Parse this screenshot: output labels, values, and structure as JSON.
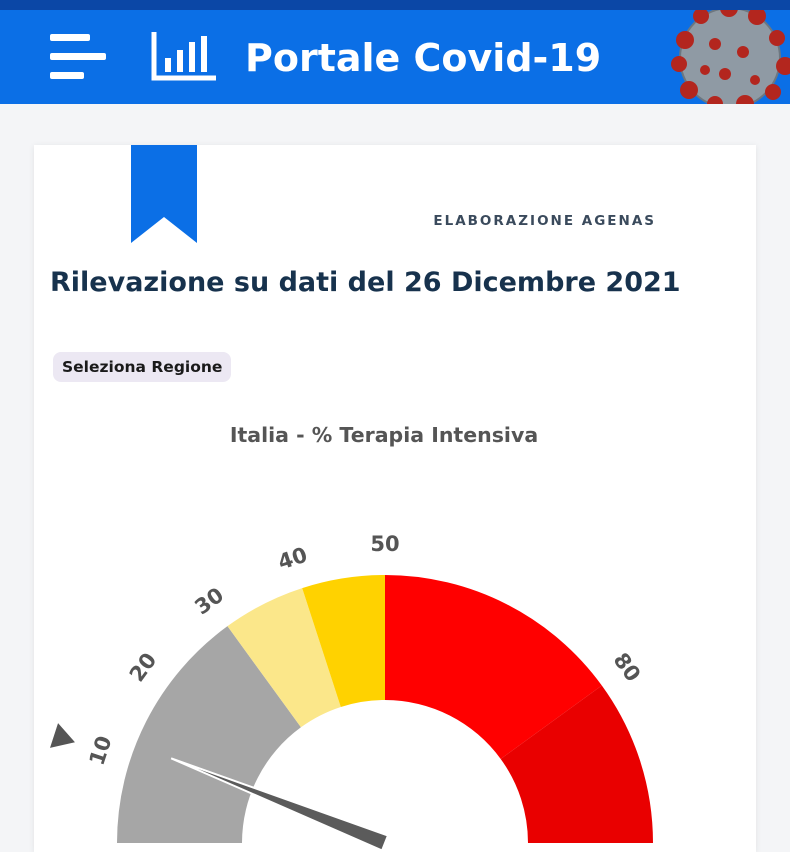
{
  "header": {
    "title": "Portale Covid-19",
    "menu_icon": "hamburger-menu-icon",
    "logo_icon": "bar-chart-icon",
    "virus_image": "coronavirus-image",
    "colors": {
      "header_bg": "#0b6fe6",
      "top_strip": "#0b47a6"
    }
  },
  "card": {
    "source_label": "ELABORAZIONE AGENAS",
    "heading": "Rilevazione su dati del 26 Dicembre 2021",
    "select_region_label": "Seleziona Regione",
    "bookmark_color": "#0b6fe6"
  },
  "chart_data": {
    "type": "gauge",
    "title": "Italia - % Terapia Intensiva",
    "tick_labels": [
      "10",
      "20",
      "30",
      "40",
      "50",
      "80"
    ],
    "bands": [
      {
        "from": 0,
        "to": 30,
        "color": "#a6a6a6"
      },
      {
        "from": 30,
        "to": 40,
        "color": "#fbe78a"
      },
      {
        "from": 40,
        "to": 50,
        "color": "#ffd200"
      },
      {
        "from": 50,
        "to": 80,
        "color": "#ff0000"
      },
      {
        "from": 80,
        "to": 100,
        "color": "#e90000"
      }
    ],
    "needle_value": 12,
    "threshold_marker_value": 10,
    "needle_color": "#5b5b5b"
  }
}
